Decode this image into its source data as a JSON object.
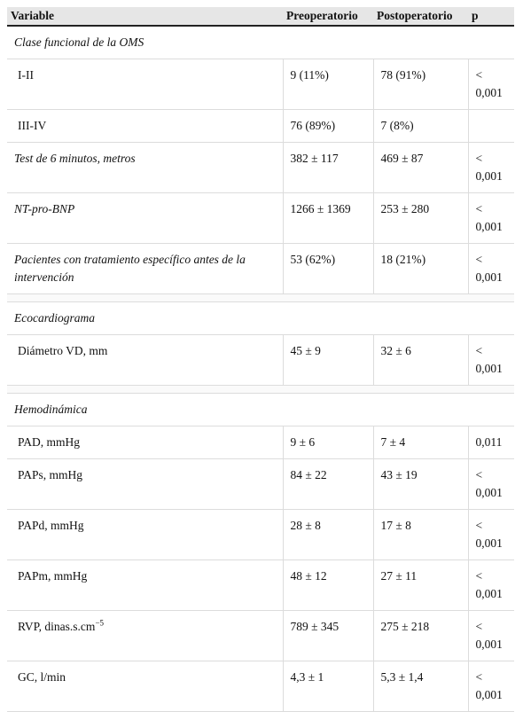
{
  "headers": {
    "variable": "Variable",
    "pre": "Preoperatorio",
    "post": "Postoperatorio",
    "p": "p"
  },
  "sections": {
    "clase": "Clase funcional de la OMS",
    "eco": "Ecocardiograma",
    "hemo": "Hemodinámica"
  },
  "rows": {
    "i_ii": {
      "label": "I-II",
      "pre": "9 (11%)",
      "post": "78 (91%)",
      "p": "< 0,001"
    },
    "iii_iv": {
      "label": "III-IV",
      "pre": "76 (89%)",
      "post": "7 (8%)",
      "p": ""
    },
    "test6": {
      "label": "Test de 6 minutos, metros",
      "pre": "382 ± 117",
      "post": "469 ± 87",
      "p": "< 0,001"
    },
    "ntprobnp": {
      "label": "NT-pro-BNP",
      "pre": "1266 ± 1369",
      "post": "253 ± 280",
      "p": "< 0,001"
    },
    "pacientes": {
      "label": "Pacientes con tratamiento específico antes de la intervención",
      "pre": "53 (62%)",
      "post": "18 (21%)",
      "p": "< 0,001"
    },
    "diametro": {
      "label": "Diámetro VD, mm",
      "pre": "45 ± 9",
      "post": "32 ± 6",
      "p": "< 0,001"
    },
    "pad": {
      "label": "PAD, mmHg",
      "pre": "9 ± 6",
      "post": "7 ± 4",
      "p": "0,011"
    },
    "paps": {
      "label": "PAPs, mmHg",
      "pre": "84 ± 22",
      "post": "43 ± 19",
      "p": "< 0,001"
    },
    "papd": {
      "label": "PAPd, mmHg",
      "pre": "28 ± 8",
      "post": "17 ± 8",
      "p": "< 0,001"
    },
    "papm": {
      "label": "PAPm, mmHg",
      "pre": "48 ± 12",
      "post": "27 ± 11",
      "p": "< 0,001"
    },
    "rvp": {
      "label": "RVP, dinas.s.cm",
      "label_sup": "−5",
      "pre": "789 ± 345",
      "post": "275 ± 218",
      "p": "< 0,001"
    },
    "gc": {
      "label": "GC, l/min",
      "pre": "4,3 ± 1",
      "post": "5,3 ± 1,4",
      "p": "< 0,001"
    }
  }
}
